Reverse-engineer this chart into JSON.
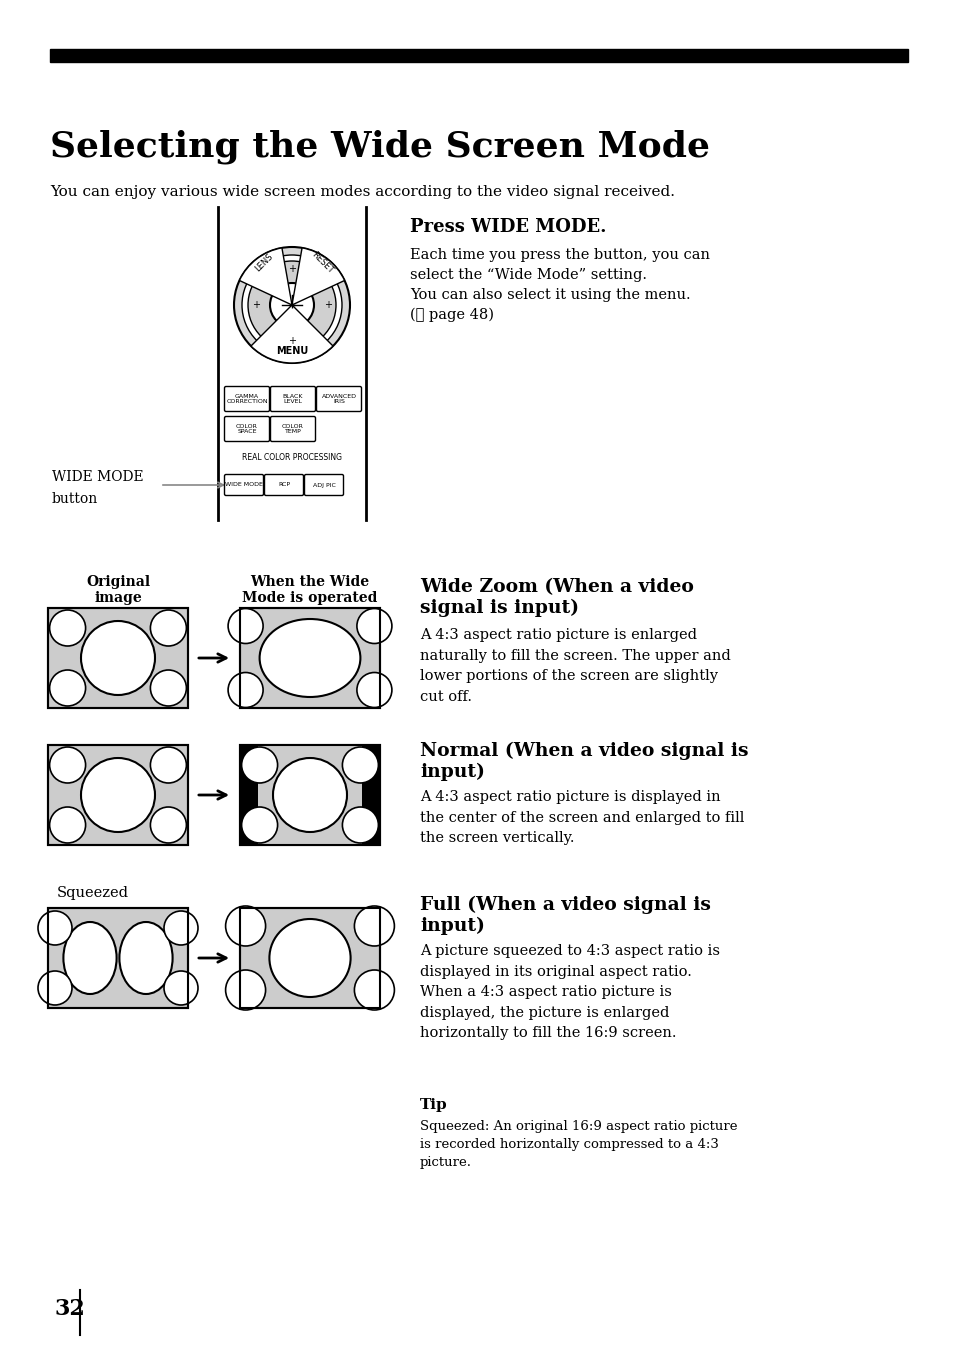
{
  "title": "Selecting the Wide Screen Mode",
  "subtitle": "You can enjoy various wide screen modes according to the video signal received.",
  "press_wide_mode_title": "Press WIDE MODE.",
  "press_line1": "Each time you press the button, you can",
  "press_line2": "select the “Wide Mode” setting.",
  "press_line3": "You can also select it using the menu.",
  "press_line4": "(☃ page 48)",
  "wide_zoom_title": "Wide Zoom (When a video\nsignal is input)",
  "wide_zoom_text": "A 4:3 aspect ratio picture is enlarged\nnaturally to fill the screen. The upper and\nlower portions of the screen are slightly\ncut off.",
  "normal_title": "Normal (When a video signal is\ninput)",
  "normal_text": "A 4:3 aspect ratio picture is displayed in\nthe center of the screen and enlarged to fill\nthe screen vertically.",
  "full_title": "Full (When a video signal is\ninput)",
  "full_text": "A picture squeezed to 4:3 aspect ratio is\ndisplayed in its original aspect ratio.\nWhen a 4:3 aspect ratio picture is\ndisplayed, the picture is enlarged\nhorizontally to fill the 16:9 screen.",
  "tip_title": "Tip",
  "tip_text": "Squeezed: An original 16:9 aspect ratio picture\nis recorded horizontally compressed to a 4:3\npicture.",
  "original_label": "Original\nimage",
  "wide_mode_label": "When the Wide\nMode is operated",
  "squeezed_label": "Squeezed",
  "wide_mode_button_label": "WIDE MODE\nbutton",
  "page_number": "32",
  "bg_color": "#ffffff",
  "text_color": "#000000",
  "gray_color": "#cccccc",
  "header_bar_color": "#000000"
}
